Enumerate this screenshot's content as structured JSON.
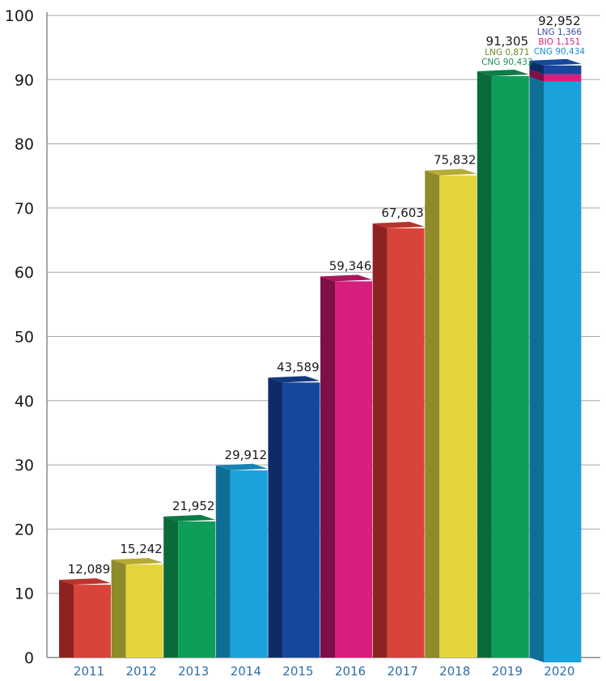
{
  "chart_data": {
    "type": "bar",
    "title": "",
    "xlabel": "",
    "ylabel": "",
    "ylim": [
      0,
      100
    ],
    "yticks": [
      "0",
      "10",
      "20",
      "30",
      "40",
      "50",
      "60",
      "70",
      "80",
      "90",
      "100"
    ],
    "grid": true,
    "bars": [
      {
        "category": "2011",
        "value": 12.089,
        "label": "12,089",
        "front": "#d9443a",
        "side": "#8e2222",
        "top": "#b8352e"
      },
      {
        "category": "2012",
        "value": 15.242,
        "label": "15,242",
        "front": "#e6d43e",
        "side": "#8f8a2a",
        "top": "#b5aa35"
      },
      {
        "category": "2013",
        "value": 21.952,
        "label": "21,952",
        "front": "#0f9e5a",
        "side": "#0a6b3a",
        "top": "#0c7c45"
      },
      {
        "category": "2014",
        "value": 29.912,
        "label": "29,912",
        "front": "#1aa2dc",
        "side": "#0e6f96",
        "top": "#1584b5"
      },
      {
        "category": "2015",
        "value": 43.589,
        "label": "43,589",
        "front": "#16479c",
        "side": "#0d2c66",
        "top": "#12397f"
      },
      {
        "category": "2016",
        "value": 59.346,
        "label": "59,346",
        "front": "#d81f7f",
        "side": "#7e0f47",
        "top": "#a8175f"
      },
      {
        "category": "2017",
        "value": 67.603,
        "label": "67,603",
        "front": "#d9443a",
        "side": "#8e2222",
        "top": "#b8352e"
      },
      {
        "category": "2018",
        "value": 75.832,
        "label": "75,832",
        "front": "#e6d43e",
        "side": "#8f8a2a",
        "top": "#b5aa35"
      },
      {
        "category": "2019",
        "value": 91.305,
        "label": "91,305",
        "front": "#0f9e5a",
        "side": "#0a6b3a",
        "top": "#0c7c45",
        "sublabels": [
          {
            "text": "LNG 0,871",
            "color": "#6a8a2a"
          },
          {
            "text": "CNG 90,433",
            "color": "#1f8f5a"
          }
        ]
      },
      {
        "category": "2020",
        "value": 92.952,
        "label": "92,952",
        "front": "#1aa2dc",
        "side": "#0e6f96",
        "top": "#16479c",
        "segments": [
          {
            "name": "CNG",
            "value": 90.434,
            "front": "#1aa2dc",
            "side": "#0e6f96"
          },
          {
            "name": "BIO",
            "value": 1.151,
            "front": "#d81f7f",
            "side": "#7e0f47"
          },
          {
            "name": "LNG",
            "value": 1.366,
            "front": "#16479c",
            "side": "#0d2c66"
          }
        ],
        "sublabels": [
          {
            "text": "LNG 1,366",
            "color": "#3a4fa0"
          },
          {
            "text": "BIO 1,151",
            "color": "#d81f7f"
          },
          {
            "text": "CNG 90,434",
            "color": "#1a8fd0"
          }
        ]
      }
    ]
  }
}
